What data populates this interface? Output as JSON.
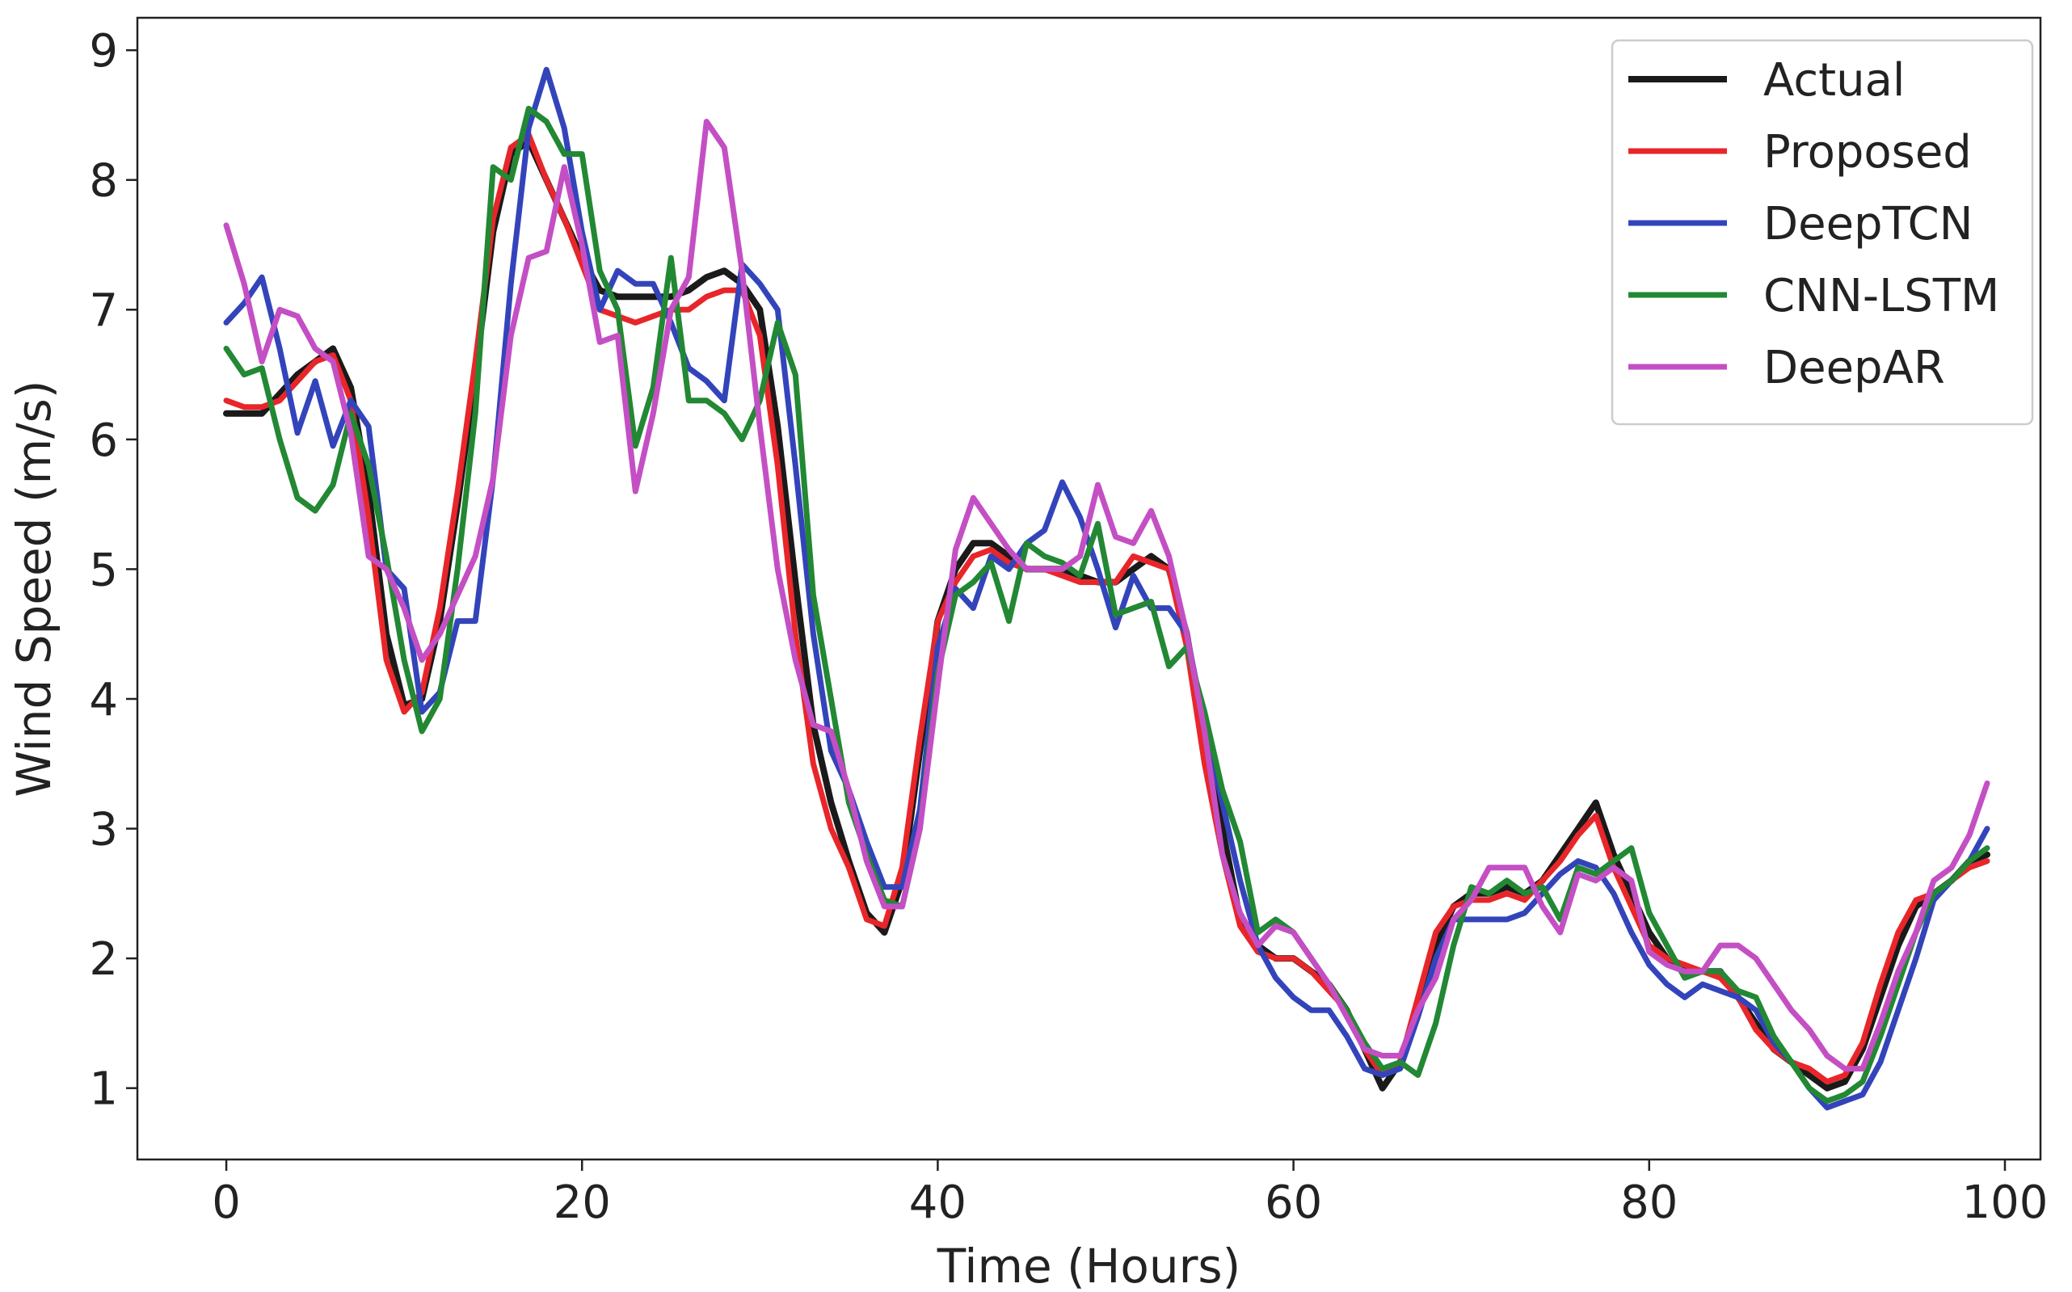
{
  "chart_data": {
    "type": "line",
    "title": "",
    "xlabel": "Time (Hours)",
    "ylabel": "Wind Speed (m/s)",
    "xlim": [
      -5,
      102
    ],
    "ylim": [
      0.45,
      9.25
    ],
    "xticks": [
      0,
      20,
      40,
      60,
      80,
      100
    ],
    "yticks": [
      1,
      2,
      3,
      4,
      5,
      6,
      7,
      8,
      9
    ],
    "grid": false,
    "legend_position": "top-right",
    "series": [
      {
        "name": "Actual",
        "color": "#1a1a1a",
        "values": [
          6.2,
          6.2,
          6.2,
          6.35,
          6.5,
          6.6,
          6.7,
          6.4,
          5.6,
          4.5,
          3.95,
          4.0,
          4.6,
          5.5,
          6.5,
          7.6,
          8.2,
          8.3,
          8.0,
          7.7,
          7.4,
          7.15,
          7.1,
          7.1,
          7.1,
          7.1,
          7.15,
          7.25,
          7.3,
          7.2,
          7.0,
          6.1,
          4.9,
          3.8,
          3.2,
          2.75,
          2.35,
          2.2,
          2.6,
          3.6,
          4.6,
          5.0,
          5.2,
          5.2,
          5.1,
          5.0,
          5.0,
          5.0,
          4.95,
          4.9,
          4.9,
          5.0,
          5.1,
          5.0,
          4.5,
          3.7,
          3.0,
          2.3,
          2.1,
          2.0,
          2.0,
          1.9,
          1.8,
          1.6,
          1.3,
          1.0,
          1.2,
          1.6,
          2.1,
          2.4,
          2.5,
          2.5,
          2.55,
          2.5,
          2.6,
          2.8,
          3.0,
          3.2,
          2.8,
          2.5,
          2.2,
          2.0,
          1.9,
          1.9,
          1.9,
          1.7,
          1.5,
          1.3,
          1.2,
          1.1,
          1.0,
          1.05,
          1.3,
          1.7,
          2.1,
          2.4,
          2.5,
          2.6,
          2.75,
          2.8
        ]
      },
      {
        "name": "Proposed",
        "color": "#e8262a",
        "values": [
          6.3,
          6.25,
          6.25,
          6.3,
          6.45,
          6.6,
          6.65,
          6.3,
          5.4,
          4.3,
          3.9,
          4.05,
          4.7,
          5.6,
          6.6,
          7.7,
          8.25,
          8.35,
          8.0,
          7.7,
          7.35,
          7.0,
          6.95,
          6.9,
          6.95,
          7.0,
          7.0,
          7.1,
          7.15,
          7.15,
          6.8,
          5.8,
          4.5,
          3.5,
          3.0,
          2.7,
          2.3,
          2.25,
          2.7,
          3.7,
          4.6,
          4.9,
          5.1,
          5.15,
          5.05,
          5.0,
          5.0,
          4.95,
          4.9,
          4.9,
          4.9,
          5.1,
          5.05,
          5.0,
          4.4,
          3.5,
          2.8,
          2.25,
          2.05,
          2.0,
          2.0,
          1.9,
          1.75,
          1.6,
          1.3,
          1.1,
          1.2,
          1.7,
          2.2,
          2.4,
          2.45,
          2.45,
          2.5,
          2.45,
          2.6,
          2.75,
          2.95,
          3.1,
          2.7,
          2.4,
          2.1,
          2.0,
          1.95,
          1.9,
          1.85,
          1.7,
          1.45,
          1.3,
          1.2,
          1.15,
          1.05,
          1.1,
          1.35,
          1.8,
          2.2,
          2.45,
          2.5,
          2.6,
          2.7,
          2.75
        ]
      },
      {
        "name": "DeepTCN",
        "color": "#3344bb",
        "values": [
          6.9,
          7.05,
          7.25,
          6.7,
          6.05,
          6.45,
          5.95,
          6.3,
          6.1,
          5.0,
          4.85,
          3.9,
          4.05,
          4.6,
          4.6,
          5.7,
          7.2,
          8.4,
          8.85,
          8.4,
          7.6,
          7.0,
          7.3,
          7.2,
          7.2,
          6.9,
          6.55,
          6.45,
          6.3,
          7.35,
          7.2,
          7.0,
          5.8,
          4.5,
          3.6,
          3.3,
          2.9,
          2.55,
          2.55,
          3.15,
          4.4,
          4.85,
          4.7,
          5.1,
          5.0,
          5.2,
          5.3,
          5.67,
          5.4,
          5.0,
          4.55,
          4.95,
          4.7,
          4.7,
          4.5,
          3.8,
          3.2,
          2.6,
          2.1,
          1.85,
          1.7,
          1.6,
          1.6,
          1.4,
          1.15,
          1.1,
          1.15,
          1.55,
          2.0,
          2.3,
          2.3,
          2.3,
          2.3,
          2.35,
          2.5,
          2.65,
          2.75,
          2.7,
          2.5,
          2.2,
          1.95,
          1.8,
          1.7,
          1.8,
          1.75,
          1.7,
          1.6,
          1.35,
          1.2,
          1.0,
          0.85,
          0.9,
          0.95,
          1.2,
          1.6,
          2.0,
          2.45,
          2.6,
          2.75,
          3.0
        ]
      },
      {
        "name": "CNN-LSTM",
        "color": "#228833",
        "values": [
          6.7,
          6.5,
          6.55,
          6.0,
          5.55,
          5.45,
          5.65,
          6.2,
          5.8,
          5.1,
          4.3,
          3.75,
          4.0,
          5.0,
          6.2,
          8.1,
          8.0,
          8.55,
          8.45,
          8.2,
          8.2,
          7.3,
          7.0,
          5.95,
          6.4,
          7.4,
          6.3,
          6.3,
          6.2,
          6.0,
          6.3,
          6.9,
          6.5,
          4.8,
          4.0,
          3.2,
          2.8,
          2.45,
          2.4,
          3.0,
          4.2,
          4.8,
          4.9,
          5.05,
          4.6,
          5.2,
          5.1,
          5.05,
          4.95,
          5.35,
          4.65,
          4.7,
          4.75,
          4.25,
          4.4,
          3.9,
          3.3,
          2.9,
          2.2,
          2.3,
          2.2,
          2.0,
          1.8,
          1.6,
          1.35,
          1.15,
          1.2,
          1.1,
          1.5,
          2.1,
          2.55,
          2.5,
          2.6,
          2.5,
          2.55,
          2.3,
          2.7,
          2.65,
          2.75,
          2.85,
          2.35,
          2.1,
          1.85,
          1.9,
          1.9,
          1.75,
          1.7,
          1.4,
          1.2,
          1.0,
          0.9,
          0.95,
          1.05,
          1.4,
          1.8,
          2.2,
          2.5,
          2.6,
          2.75,
          2.85
        ]
      },
      {
        "name": "DeepAR",
        "color": "#c44fc4",
        "values": [
          7.65,
          7.2,
          6.6,
          7.0,
          6.95,
          6.7,
          6.6,
          6.05,
          5.1,
          5.0,
          4.7,
          4.3,
          4.5,
          4.8,
          5.1,
          5.7,
          6.8,
          7.4,
          7.45,
          8.1,
          7.5,
          6.75,
          6.8,
          5.6,
          6.2,
          7.0,
          7.25,
          8.45,
          8.25,
          7.3,
          6.1,
          5.0,
          4.3,
          3.8,
          3.75,
          3.3,
          2.75,
          2.4,
          2.4,
          3.0,
          4.1,
          5.15,
          5.55,
          5.35,
          5.15,
          5.0,
          5.0,
          5.0,
          5.1,
          5.65,
          5.25,
          5.2,
          5.45,
          5.1,
          4.5,
          3.75,
          2.8,
          2.35,
          2.1,
          2.25,
          2.2,
          2.0,
          1.8,
          1.55,
          1.3,
          1.25,
          1.25,
          1.6,
          1.85,
          2.3,
          2.45,
          2.7,
          2.7,
          2.7,
          2.4,
          2.2,
          2.65,
          2.6,
          2.7,
          2.6,
          2.05,
          1.95,
          1.9,
          1.9,
          2.1,
          2.1,
          2.0,
          1.8,
          1.6,
          1.45,
          1.25,
          1.15,
          1.15,
          1.5,
          1.9,
          2.2,
          2.6,
          2.7,
          2.95,
          3.35
        ]
      }
    ]
  }
}
